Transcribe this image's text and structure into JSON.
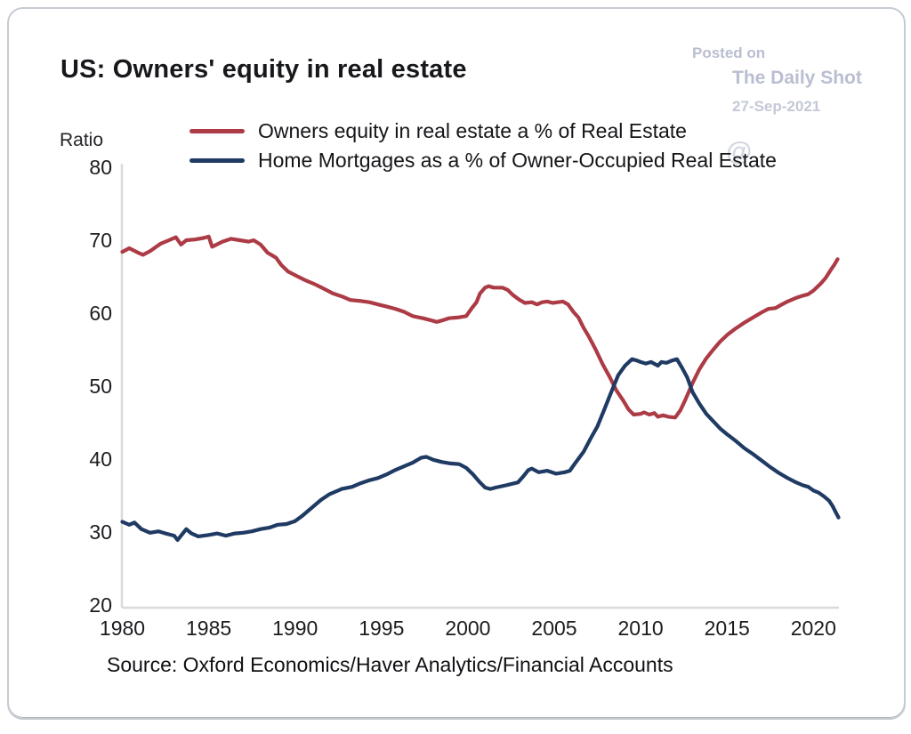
{
  "title": "US: Owners' equity in real estate",
  "watermark": {
    "posted_on": "Posted on",
    "site": "The Daily Shot",
    "date": "27-Sep-2021",
    "at_symbol": "@"
  },
  "source_note": "Source: Oxford Economics/Haver Analytics/Financial Accounts",
  "colors": {
    "red_series": "#ac3b45",
    "blue_series": "#1f3a63",
    "axis": "#d9dadb",
    "text": "#1a1b1d",
    "watermark": "#b9bed1"
  },
  "chart_data": {
    "type": "line",
    "title": "US: Owners' equity in real estate",
    "xlabel": "",
    "ylabel": "Ratio",
    "xlim": [
      1980,
      2021.6
    ],
    "ylim": [
      20,
      80
    ],
    "x_ticks": [
      1980,
      1985,
      1990,
      1995,
      2000,
      2005,
      2010,
      2015,
      2020
    ],
    "y_ticks": [
      80,
      70,
      60,
      50,
      40,
      30,
      20
    ],
    "grid": false,
    "legend_position": "top-center",
    "series": [
      {
        "name": "Owners equity in real estate a % of Real Estate",
        "color": "#ac3b45",
        "points": [
          [
            1980.0,
            68.4
          ],
          [
            1980.4,
            68.9
          ],
          [
            1980.9,
            68.3
          ],
          [
            1981.2,
            68.0
          ],
          [
            1981.6,
            68.5
          ],
          [
            1982.2,
            69.5
          ],
          [
            1982.7,
            70.0
          ],
          [
            1983.1,
            70.4
          ],
          [
            1983.4,
            69.4
          ],
          [
            1983.7,
            70.0
          ],
          [
            1984.2,
            70.1
          ],
          [
            1984.7,
            70.3
          ],
          [
            1985.0,
            70.5
          ],
          [
            1985.2,
            69.1
          ],
          [
            1985.8,
            69.8
          ],
          [
            1986.3,
            70.2
          ],
          [
            1986.8,
            70.0
          ],
          [
            1987.3,
            69.8
          ],
          [
            1987.6,
            70.0
          ],
          [
            1988.0,
            69.4
          ],
          [
            1988.4,
            68.3
          ],
          [
            1988.9,
            67.6
          ],
          [
            1989.2,
            66.6
          ],
          [
            1989.6,
            65.7
          ],
          [
            1990.1,
            65.1
          ],
          [
            1990.6,
            64.5
          ],
          [
            1991.2,
            63.9
          ],
          [
            1991.7,
            63.3
          ],
          [
            1992.2,
            62.7
          ],
          [
            1992.7,
            62.3
          ],
          [
            1993.2,
            61.8
          ],
          [
            1993.7,
            61.7
          ],
          [
            1994.3,
            61.5
          ],
          [
            1994.8,
            61.2
          ],
          [
            1995.3,
            60.9
          ],
          [
            1995.8,
            60.6
          ],
          [
            1996.3,
            60.2
          ],
          [
            1996.8,
            59.6
          ],
          [
            1997.4,
            59.3
          ],
          [
            1997.9,
            59.0
          ],
          [
            1998.2,
            58.8
          ],
          [
            1998.5,
            59.0
          ],
          [
            1998.9,
            59.3
          ],
          [
            1999.4,
            59.4
          ],
          [
            1999.9,
            59.6
          ],
          [
            2000.2,
            60.6
          ],
          [
            2000.5,
            61.5
          ],
          [
            2000.7,
            62.7
          ],
          [
            2001.0,
            63.5
          ],
          [
            2001.2,
            63.7
          ],
          [
            2001.5,
            63.5
          ],
          [
            2002.0,
            63.5
          ],
          [
            2002.3,
            63.2
          ],
          [
            2002.6,
            62.5
          ],
          [
            2003.0,
            61.8
          ],
          [
            2003.3,
            61.4
          ],
          [
            2003.7,
            61.5
          ],
          [
            2004.0,
            61.2
          ],
          [
            2004.3,
            61.5
          ],
          [
            2004.6,
            61.6
          ],
          [
            2004.9,
            61.4
          ],
          [
            2005.2,
            61.5
          ],
          [
            2005.5,
            61.6
          ],
          [
            2005.8,
            61.2
          ],
          [
            2006.1,
            60.2
          ],
          [
            2006.4,
            59.4
          ],
          [
            2006.7,
            58.0
          ],
          [
            2007.0,
            56.8
          ],
          [
            2007.4,
            55.0
          ],
          [
            2007.8,
            53.0
          ],
          [
            2008.2,
            51.3
          ],
          [
            2008.6,
            49.4
          ],
          [
            2009.0,
            48.0
          ],
          [
            2009.3,
            46.8
          ],
          [
            2009.6,
            46.1
          ],
          [
            2010.0,
            46.2
          ],
          [
            2010.2,
            46.4
          ],
          [
            2010.5,
            46.1
          ],
          [
            2010.8,
            46.3
          ],
          [
            2011.0,
            45.8
          ],
          [
            2011.3,
            46.0
          ],
          [
            2011.6,
            45.8
          ],
          [
            2012.0,
            45.7
          ],
          [
            2012.3,
            46.7
          ],
          [
            2012.6,
            48.2
          ],
          [
            2013.0,
            50.4
          ],
          [
            2013.4,
            52.3
          ],
          [
            2013.8,
            53.8
          ],
          [
            2014.2,
            55.0
          ],
          [
            2014.6,
            56.1
          ],
          [
            2015.0,
            57.0
          ],
          [
            2015.5,
            57.9
          ],
          [
            2016.0,
            58.7
          ],
          [
            2016.5,
            59.4
          ],
          [
            2017.0,
            60.1
          ],
          [
            2017.4,
            60.6
          ],
          [
            2017.8,
            60.7
          ],
          [
            2018.1,
            61.1
          ],
          [
            2018.5,
            61.6
          ],
          [
            2019.0,
            62.1
          ],
          [
            2019.4,
            62.4
          ],
          [
            2019.7,
            62.6
          ],
          [
            2020.0,
            63.1
          ],
          [
            2020.4,
            64.0
          ],
          [
            2020.7,
            64.8
          ],
          [
            2021.0,
            65.9
          ],
          [
            2021.2,
            66.6
          ],
          [
            2021.4,
            67.4
          ]
        ]
      },
      {
        "name": "Home Mortgages as a % of Owner-Occupied Real Estate",
        "color": "#1f3a63",
        "points": [
          [
            1980.0,
            31.4
          ],
          [
            1980.4,
            31.0
          ],
          [
            1980.7,
            31.3
          ],
          [
            1981.1,
            30.4
          ],
          [
            1981.6,
            29.9
          ],
          [
            1982.1,
            30.1
          ],
          [
            1982.5,
            29.8
          ],
          [
            1983.0,
            29.5
          ],
          [
            1983.2,
            28.9
          ],
          [
            1983.5,
            29.8
          ],
          [
            1983.7,
            30.4
          ],
          [
            1984.0,
            29.8
          ],
          [
            1984.4,
            29.4
          ],
          [
            1985.0,
            29.6
          ],
          [
            1985.5,
            29.8
          ],
          [
            1986.0,
            29.5
          ],
          [
            1986.5,
            29.8
          ],
          [
            1987.0,
            29.9
          ],
          [
            1987.5,
            30.1
          ],
          [
            1988.0,
            30.4
          ],
          [
            1988.5,
            30.6
          ],
          [
            1989.0,
            31.0
          ],
          [
            1989.5,
            31.1
          ],
          [
            1990.0,
            31.5
          ],
          [
            1990.4,
            32.2
          ],
          [
            1991.0,
            33.4
          ],
          [
            1991.5,
            34.4
          ],
          [
            1992.0,
            35.2
          ],
          [
            1992.7,
            35.9
          ],
          [
            1993.3,
            36.2
          ],
          [
            1993.8,
            36.7
          ],
          [
            1994.3,
            37.1
          ],
          [
            1994.8,
            37.4
          ],
          [
            1995.3,
            37.9
          ],
          [
            1995.8,
            38.5
          ],
          [
            1996.3,
            39.0
          ],
          [
            1996.8,
            39.5
          ],
          [
            1997.3,
            40.2
          ],
          [
            1997.6,
            40.3
          ],
          [
            1998.0,
            39.9
          ],
          [
            1998.5,
            39.6
          ],
          [
            1999.0,
            39.4
          ],
          [
            1999.5,
            39.3
          ],
          [
            1999.9,
            38.8
          ],
          [
            2000.3,
            37.9
          ],
          [
            2000.7,
            36.8
          ],
          [
            2001.0,
            36.1
          ],
          [
            2001.3,
            35.9
          ],
          [
            2001.6,
            36.1
          ],
          [
            2002.2,
            36.4
          ],
          [
            2002.9,
            36.8
          ],
          [
            2003.2,
            37.6
          ],
          [
            2003.5,
            38.5
          ],
          [
            2003.7,
            38.7
          ],
          [
            2004.1,
            38.2
          ],
          [
            2004.6,
            38.4
          ],
          [
            2005.1,
            38.0
          ],
          [
            2005.6,
            38.2
          ],
          [
            2005.9,
            38.4
          ],
          [
            2006.2,
            39.4
          ],
          [
            2006.7,
            41.0
          ],
          [
            2007.1,
            42.8
          ],
          [
            2007.5,
            44.5
          ],
          [
            2007.9,
            46.8
          ],
          [
            2008.3,
            49.2
          ],
          [
            2008.7,
            51.5
          ],
          [
            2009.1,
            52.8
          ],
          [
            2009.5,
            53.7
          ],
          [
            2009.8,
            53.5
          ],
          [
            2010.0,
            53.3
          ],
          [
            2010.3,
            53.1
          ],
          [
            2010.6,
            53.3
          ],
          [
            2011.0,
            52.8
          ],
          [
            2011.2,
            53.3
          ],
          [
            2011.5,
            53.2
          ],
          [
            2011.8,
            53.5
          ],
          [
            2012.1,
            53.7
          ],
          [
            2012.4,
            52.5
          ],
          [
            2012.7,
            51.2
          ],
          [
            2013.0,
            49.2
          ],
          [
            2013.4,
            47.6
          ],
          [
            2013.8,
            46.2
          ],
          [
            2014.2,
            45.2
          ],
          [
            2014.6,
            44.2
          ],
          [
            2015.0,
            43.4
          ],
          [
            2015.5,
            42.5
          ],
          [
            2016.0,
            41.5
          ],
          [
            2016.5,
            40.7
          ],
          [
            2017.0,
            39.8
          ],
          [
            2017.5,
            38.9
          ],
          [
            2018.0,
            38.1
          ],
          [
            2018.5,
            37.4
          ],
          [
            2019.0,
            36.8
          ],
          [
            2019.4,
            36.4
          ],
          [
            2019.7,
            36.2
          ],
          [
            2020.0,
            35.7
          ],
          [
            2020.3,
            35.4
          ],
          [
            2020.6,
            34.9
          ],
          [
            2020.9,
            34.3
          ],
          [
            2021.1,
            33.6
          ],
          [
            2021.3,
            32.7
          ],
          [
            2021.45,
            32.0
          ]
        ]
      }
    ]
  }
}
